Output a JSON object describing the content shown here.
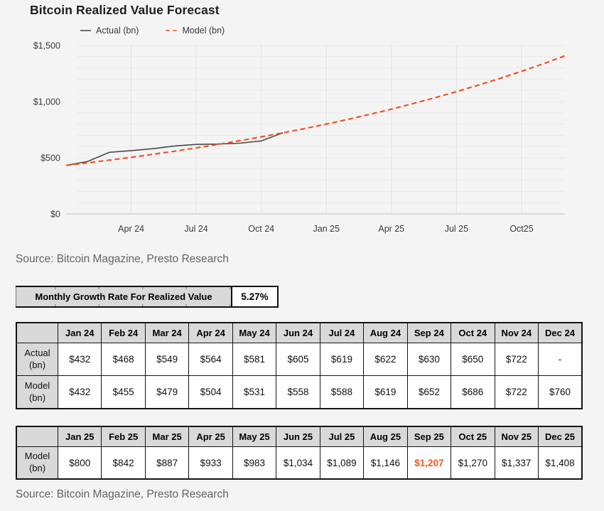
{
  "title": "Bitcoin Realized Value Forecast",
  "legend": {
    "items": [
      {
        "label": "Actual (bn)",
        "type": "solid",
        "color": "#6f6f73"
      },
      {
        "label": "Model (bn)",
        "type": "dashed",
        "color": "#f4765a"
      }
    ]
  },
  "source_top": "Source: Bitcoin Magazine, Presto Research",
  "source_bottom": "Source: Bitcoin Magazine, Presto Research",
  "growth_rate": {
    "label": "Monthly Growth Rate For Realized Value",
    "value": "5.27%"
  },
  "colors": {
    "page_bg": "#f4f4f5",
    "accent_model": "#f4521f",
    "actual_line": "#4a4a4a",
    "highlight_text": "#f15a24",
    "header_bg": "#d9d9d9",
    "table_border": "#141414"
  },
  "chart_data": {
    "type": "line",
    "title": "Bitcoin Realized Value Forecast",
    "x": [
      "Jan 24",
      "Feb 24",
      "Mar 24",
      "Apr 24",
      "May 24",
      "Jun 24",
      "Jul 24",
      "Aug 24",
      "Sep 24",
      "Oct 24",
      "Nov 24",
      "Dec 24",
      "Jan 25",
      "Feb 25",
      "Mar 25",
      "Apr 25",
      "May 25",
      "Jun 25",
      "Jul 25",
      "Aug 25",
      "Sep 25",
      "Oct 25",
      "Nov 25",
      "Dec 25"
    ],
    "series": [
      {
        "name": "Actual (bn)",
        "color": "#4a4a4a",
        "dash": false,
        "values": [
          432,
          468,
          549,
          564,
          581,
          605,
          619,
          622,
          630,
          650,
          722,
          null,
          null,
          null,
          null,
          null,
          null,
          null,
          null,
          null,
          null,
          null,
          null,
          null
        ]
      },
      {
        "name": "Model (bn)",
        "color": "#f4521f",
        "dash": true,
        "values": [
          432,
          455,
          479,
          504,
          531,
          558,
          588,
          619,
          652,
          686,
          722,
          760,
          800,
          842,
          887,
          933,
          983,
          1034,
          1089,
          1146,
          1207,
          1270,
          1337,
          1408
        ]
      }
    ],
    "ylim": [
      0,
      1500
    ],
    "minor_grid_step": 100,
    "y_ticks": [
      0,
      500,
      1000,
      1500
    ],
    "y_tick_labels": [
      "$0",
      "$500",
      "$1,000",
      "$1,500"
    ],
    "x_tick_indices": [
      3,
      6,
      9,
      12,
      15,
      18,
      21
    ],
    "x_tick_labels": [
      "Apr 24",
      "Jul 24",
      "Oct 24",
      "Jan 25",
      "Apr 25",
      "Jul 25",
      "Oct25"
    ],
    "legend_position": "top-left",
    "grid": true
  },
  "tables": [
    {
      "columns": [
        "",
        "Jan 24",
        "Feb 24",
        "Mar 24",
        "Apr 24",
        "May 24",
        "Jun 24",
        "Jul 24",
        "Aug 24",
        "Sep 24",
        "Oct 24",
        "Nov 24",
        "Dec 24"
      ],
      "rows": [
        {
          "label_lines": [
            "Actual",
            "(bn)"
          ],
          "cells": [
            "$432",
            "$468",
            "$549",
            "$564",
            "$581",
            "$605",
            "$619",
            "$622",
            "$630",
            "$650",
            "$722",
            "-"
          ],
          "highlight_index": -1
        },
        {
          "label_lines": [
            "Model",
            "(bn)"
          ],
          "cells": [
            "$432",
            "$455",
            "$479",
            "$504",
            "$531",
            "$558",
            "$588",
            "$619",
            "$652",
            "$686",
            "$722",
            "$760"
          ],
          "highlight_index": -1
        }
      ]
    },
    {
      "columns": [
        "",
        "Jan 25",
        "Feb 25",
        "Mar 25",
        "Apr 25",
        "May 25",
        "Jun 25",
        "Jul 25",
        "Aug 25",
        "Sep 25",
        "Oct 25",
        "Nov 25",
        "Dec 25"
      ],
      "rows": [
        {
          "label_lines": [
            "Model",
            "(bn)"
          ],
          "cells": [
            "$800",
            "$842",
            "$887",
            "$933",
            "$983",
            "$1,034",
            "$1,089",
            "$1,146",
            "$1,207",
            "$1,270",
            "$1,337",
            "$1,408"
          ],
          "highlight_index": 8
        }
      ]
    }
  ]
}
